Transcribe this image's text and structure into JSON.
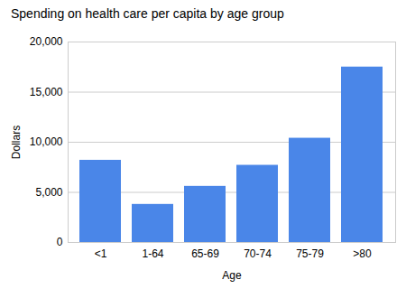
{
  "chart_data": {
    "type": "bar",
    "title": "Spending on health care per capita by age group",
    "xlabel": "Age",
    "ylabel": "Dollars",
    "categories": [
      "<1",
      "1-64",
      "65-69",
      "70-74",
      "75-79",
      ">80"
    ],
    "values": [
      8200,
      3800,
      5600,
      7700,
      10400,
      17500
    ],
    "color": "#4a86e8",
    "ylim": [
      0,
      20000
    ],
    "yticks": [
      0,
      {
        "value": 5000,
        "label": "5,000"
      },
      {
        "value": 10000,
        "label": "10,000"
      },
      {
        "value": 15000,
        "label": "15,000"
      },
      {
        "value": 20000,
        "label": "20,000"
      }
    ],
    "grid": true
  }
}
